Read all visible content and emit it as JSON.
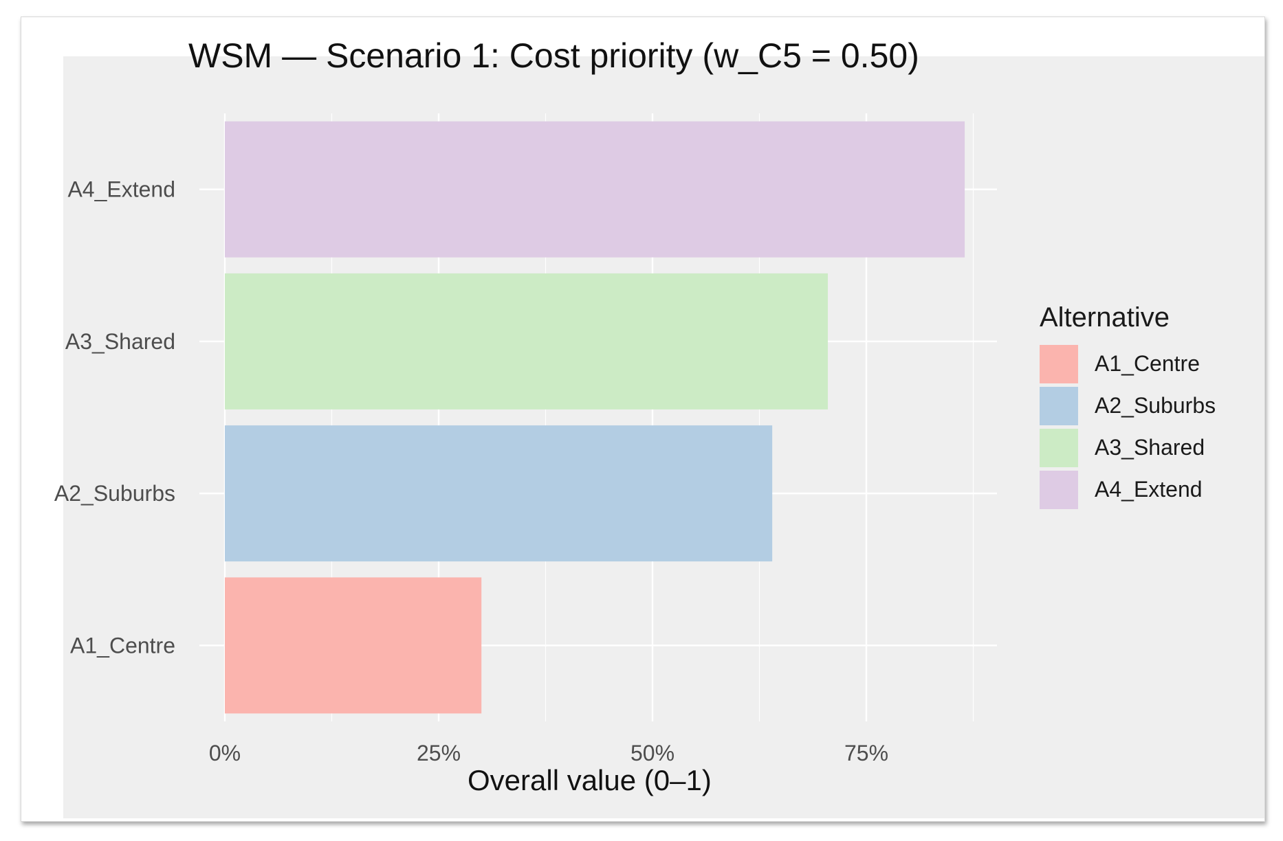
{
  "chart_data": {
    "type": "bar",
    "orientation": "horizontal",
    "title": "WSM — Scenario 1: Cost priority (w_C5 = 0.50)",
    "xlabel": "Overall value (0–1)",
    "ylabel": "",
    "xlim": [
      0,
      0.9
    ],
    "x_ticks": [
      0,
      0.25,
      0.5,
      0.75
    ],
    "x_tick_labels": [
      "0%",
      "25%",
      "50%",
      "75%"
    ],
    "categories": [
      "A1_Centre",
      "A2_Suburbs",
      "A3_Shared",
      "A4_Extend"
    ],
    "values": [
      0.3,
      0.64,
      0.705,
      0.865
    ],
    "colors": [
      "#fbb4ae",
      "#b3cde3",
      "#ccebc5",
      "#decbe4"
    ],
    "grid": true,
    "legend": {
      "title": "Alternative",
      "position": "right",
      "entries": [
        "A1_Centre",
        "A2_Suburbs",
        "A3_Shared",
        "A4_Extend"
      ]
    }
  }
}
